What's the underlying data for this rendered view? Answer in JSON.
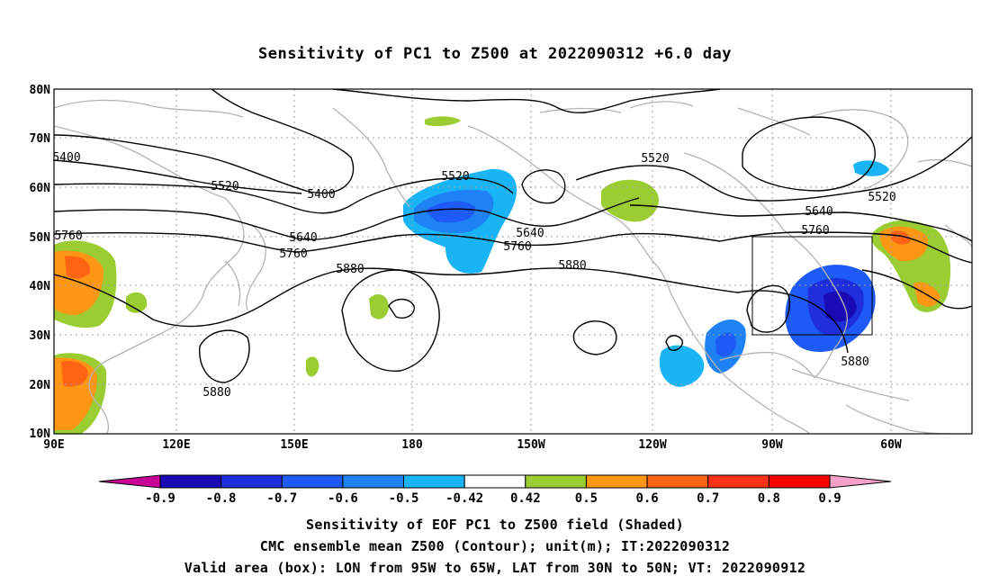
{
  "title": "Sensitivity of PC1 to Z500 at 2022090312 +6.0 day",
  "lat_labels": [
    "80N",
    "70N",
    "60N",
    "50N",
    "40N",
    "30N",
    "20N",
    "10N"
  ],
  "lon_labels": [
    "90E",
    "120E",
    "150E",
    "180",
    "150W",
    "120W",
    "90W",
    "60W"
  ],
  "colorbar": {
    "labels": [
      "-0.9",
      "-0.8",
      "-0.7",
      "-0.6",
      "-0.5",
      "-0.42",
      "0.42",
      "0.5",
      "0.6",
      "0.7",
      "0.8",
      "0.9"
    ],
    "colors": [
      "#1a0ab4",
      "#1f2fdc",
      "#1e5af5",
      "#1e82f5",
      "#19b4f5",
      "#ffffff",
      "#9bcd32",
      "#ff9614",
      "#ff6414",
      "#ff3214",
      "#ff0000"
    ],
    "under_color": "#c80096",
    "over_color": "#f5a0c8"
  },
  "contour_labels": [
    "5400",
    "5520",
    "5400",
    "5640",
    "5760",
    "5880",
    "5520",
    "5640",
    "5760",
    "5880",
    "5520",
    "5520",
    "5640",
    "5760",
    "5880",
    "5880",
    "5760"
  ],
  "captions": {
    "line1": "Sensitivity of EOF PC1 to Z500 field (Shaded)",
    "line2": "CMC ensemble mean Z500 (Contour); unit(m); IT:2022090312",
    "line3": "Valid area (box): LON from 95W to 65W, LAT from 30N to 50N; VT: 2022090912"
  },
  "colors": {
    "contour": "#000000",
    "coastline": "#b4b4b4",
    "grid": "#a0a0a0",
    "neg_strong": "#1a0ab4",
    "neg_mid": "#1e5af5",
    "neg_weak": "#19b4f5",
    "pos_weak": "#9bcd32",
    "pos_mid": "#ff9614",
    "pos_strong": "#ff6414"
  }
}
